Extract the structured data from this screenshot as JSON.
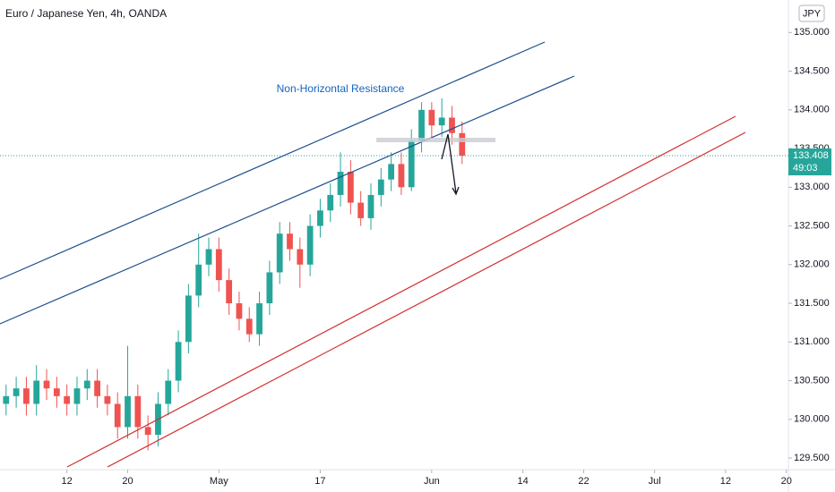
{
  "chart_data": {
    "type": "candlestick",
    "title": "Euro / Japanese Yen, 4h, OANDA",
    "currency": "JPY",
    "annotation": "Non-Horizontal Resistance",
    "x": [
      -6,
      -5,
      -4,
      -3,
      -2,
      -1,
      0,
      1,
      2,
      3,
      4,
      5,
      6,
      7,
      8,
      9,
      10,
      11,
      12,
      13,
      14,
      15,
      16,
      17,
      18,
      19,
      20,
      21,
      22,
      23,
      24,
      25,
      26,
      27,
      28,
      29,
      30,
      31,
      32,
      33,
      34,
      35,
      36,
      37,
      38,
      39
    ],
    "open": [
      130.2,
      130.3,
      130.4,
      130.2,
      130.5,
      130.4,
      130.3,
      130.2,
      130.4,
      130.5,
      130.3,
      130.2,
      129.9,
      130.3,
      129.9,
      129.8,
      130.2,
      130.5,
      131,
      131.6,
      132,
      132.2,
      131.8,
      131.5,
      131.3,
      131.1,
      131.5,
      131.9,
      132.4,
      132.2,
      132,
      132.5,
      132.7,
      132.9,
      133.2,
      132.8,
      132.6,
      132.9,
      133.1,
      133.3,
      133,
      133.6,
      134,
      133.8,
      133.9,
      133.7
    ],
    "high": [
      130.45,
      130.55,
      130.55,
      130.7,
      130.65,
      130.55,
      130.45,
      130.55,
      130.65,
      130.65,
      130.45,
      130.35,
      130.95,
      130.45,
      130.05,
      130.35,
      130.65,
      131.15,
      131.75,
      132.4,
      132.35,
      132.35,
      131.95,
      131.65,
      131.45,
      131.65,
      132.05,
      132.55,
      132.55,
      132.35,
      132.65,
      132.85,
      133.05,
      133.45,
      133.35,
      132.95,
      133.05,
      133.25,
      133.45,
      133.45,
      133.75,
      134.1,
      134.1,
      134.15,
      134.05,
      133.85
    ],
    "low": [
      130.05,
      130.15,
      130.05,
      130.05,
      130.25,
      130.15,
      130.05,
      130.05,
      130.25,
      130.15,
      130.05,
      129.75,
      129.75,
      129.75,
      129.6,
      129.65,
      130.05,
      130.35,
      130.85,
      131.45,
      131.85,
      131.65,
      131.35,
      131.15,
      131,
      130.95,
      131.35,
      131.75,
      132.05,
      131.7,
      131.85,
      132.35,
      132.55,
      132.75,
      132.65,
      132.5,
      132.45,
      132.75,
      132.95,
      132.9,
      132.95,
      133.45,
      133.65,
      133.65,
      133.55,
      133.3
    ],
    "close": [
      130.3,
      130.4,
      130.2,
      130.5,
      130.4,
      130.3,
      130.2,
      130.4,
      130.5,
      130.3,
      130.2,
      129.9,
      130.3,
      129.9,
      129.8,
      130.2,
      130.5,
      131,
      131.6,
      132,
      132.2,
      131.8,
      131.5,
      131.3,
      131.1,
      131.5,
      131.9,
      132.4,
      132.2,
      132,
      132.5,
      132.7,
      132.9,
      133.2,
      132.8,
      132.6,
      132.9,
      133.1,
      133.3,
      133,
      133.6,
      134,
      133.8,
      133.9,
      133.7,
      133.408
    ],
    "up_color": "#26a69a",
    "down_color": "#ef5350",
    "last_price": 133.408,
    "last_price_label": "133.408",
    "countdown": "49:03",
    "xlim": [
      -6.6,
      71.2
    ],
    "xticks": [
      {
        "value": 0,
        "label": "12"
      },
      {
        "value": 6,
        "label": "20"
      },
      {
        "value": 15,
        "label": "May"
      },
      {
        "value": 25,
        "label": "17"
      },
      {
        "value": 36,
        "label": "Jun"
      },
      {
        "value": 45,
        "label": "14"
      },
      {
        "value": 51,
        "label": "22"
      },
      {
        "value": 58,
        "label": "Jul"
      },
      {
        "value": 65,
        "label": "12"
      },
      {
        "value": 71,
        "label": "20"
      }
    ],
    "ylim": [
      129.35,
      135.42
    ],
    "yticks": [
      {
        "value": 129.5,
        "label": "129.500"
      },
      {
        "value": 130,
        "label": "130.000"
      },
      {
        "value": 130.5,
        "label": "130.500"
      },
      {
        "value": 131,
        "label": "131.000"
      },
      {
        "value": 131.5,
        "label": "131.500"
      },
      {
        "value": 132,
        "label": "132.000"
      },
      {
        "value": 132.5,
        "label": "132.500"
      },
      {
        "value": 133,
        "label": "133.000"
      },
      {
        "value": 133.5,
        "label": "133.500"
      },
      {
        "value": 134,
        "label": "134.000"
      },
      {
        "value": 134.5,
        "label": "134.500"
      },
      {
        "value": 135,
        "label": "135.000"
      }
    ]
  }
}
